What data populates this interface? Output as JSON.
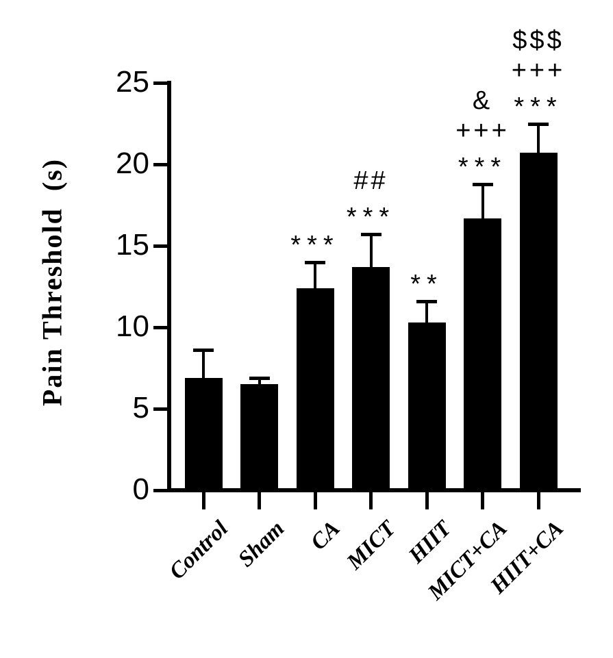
{
  "chart_data": {
    "type": "bar",
    "title": "",
    "ylabel": "Pain Threshold  (s)",
    "xlabel": "",
    "ylim": [
      0,
      25
    ],
    "yticks": [
      0,
      5,
      10,
      15,
      20,
      25
    ],
    "categories": [
      "Control",
      "Sham",
      "CA",
      "MICT",
      "HIIT",
      "MICT+CA",
      "HIIT+CA"
    ],
    "values": [
      6.9,
      6.5,
      12.4,
      13.7,
      10.3,
      16.7,
      20.7
    ],
    "errors_sd": [
      1.7,
      0.4,
      1.6,
      2.0,
      1.3,
      2.1,
      1.8
    ],
    "annotations_bottom_to_top": [
      [],
      [],
      [
        "***"
      ],
      [
        "***",
        "##"
      ],
      [
        "**"
      ],
      [
        "***",
        "+++",
        "&"
      ],
      [
        "***",
        "+++",
        "$$$"
      ]
    ],
    "bar_color": "#000000",
    "error_bar_color": "#000000",
    "axis_color": "#000000",
    "background_color": "#ffffff",
    "grid": false,
    "legend": null
  }
}
